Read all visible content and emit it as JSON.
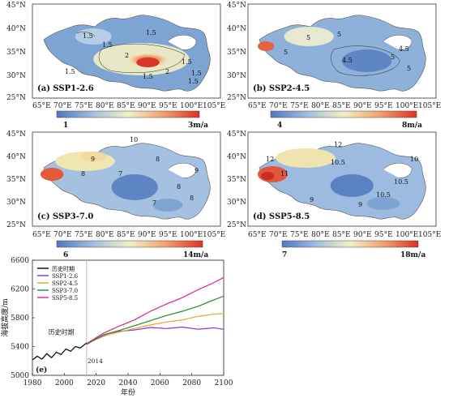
{
  "panels": [
    {
      "id": "a",
      "label": "(a) SSP1-2.6",
      "cb_min": "1",
      "cb_max": "3m/a",
      "contours": [
        "1.5",
        "1.5",
        "1.5",
        "2",
        "1.5",
        "1.5",
        "1.5",
        "1.5",
        "2",
        "1.5"
      ]
    },
    {
      "id": "b",
      "label": "(b) SSP2-4.5",
      "cb_min": "4",
      "cb_max": "8m/a",
      "contours": [
        "5",
        "4.5",
        "5",
        "5",
        "5",
        "4.5",
        "5"
      ]
    },
    {
      "id": "c",
      "label": "(c) SSP3-7.0",
      "cb_min": "6",
      "cb_max": "14m/a",
      "contours": [
        "10",
        "9",
        "8",
        "8",
        "7",
        "7",
        "8",
        "9",
        "8"
      ]
    },
    {
      "id": "d",
      "label": "(d) SSP5-8.5",
      "cb_min": "7",
      "cb_max": "18m/a",
      "contours": [
        "12",
        "11",
        "12",
        "10.5",
        "10.5",
        "9",
        "9",
        "10.5",
        "10"
      ]
    }
  ],
  "lat_ticks": [
    "45°N",
    "40°N",
    "35°N",
    "30°N",
    "25°N"
  ],
  "lon_ticks": [
    "65°E",
    "70°E",
    "75°E",
    "80°E",
    "85°E",
    "90°E",
    "95°E",
    "100°E",
    "105°E"
  ],
  "colors": {
    "low": "#5b83c4",
    "mid": "#f6eec0",
    "high": "#e03b2b"
  },
  "chart_data": {
    "type": "line",
    "label": "(e)",
    "xlabel": "年份",
    "ylabel": "海拔高度/m",
    "xlim": [
      1980,
      2100
    ],
    "ylim": [
      5000,
      6600
    ],
    "xticks": [
      1980,
      2000,
      2020,
      2040,
      2060,
      2080,
      2100
    ],
    "yticks": [
      5000,
      5400,
      5800,
      6200,
      6600
    ],
    "annotation": "历史时期",
    "vline": {
      "x": 2014,
      "label": "2014"
    },
    "series": [
      {
        "name": "历史时期",
        "color": "#000000",
        "x": [
          1980,
          1983,
          1986,
          1989,
          1992,
          1995,
          1998,
          2001,
          2004,
          2007,
          2010,
          2014
        ],
        "y": [
          5215,
          5265,
          5225,
          5300,
          5245,
          5320,
          5290,
          5365,
          5335,
          5400,
          5380,
          5450
        ]
      },
      {
        "name": "SSP1-2.6",
        "color": "#8a2be2",
        "x": [
          2014,
          2024,
          2034,
          2044,
          2054,
          2064,
          2074,
          2084,
          2094,
          2100
        ],
        "y": [
          5440,
          5540,
          5610,
          5630,
          5665,
          5650,
          5670,
          5640,
          5660,
          5640
        ]
      },
      {
        "name": "SSP2-4.5",
        "color": "#f0a020",
        "x": [
          2014,
          2024,
          2034,
          2044,
          2054,
          2064,
          2074,
          2084,
          2094,
          2100
        ],
        "y": [
          5430,
          5550,
          5600,
          5650,
          5700,
          5740,
          5770,
          5820,
          5850,
          5860
        ]
      },
      {
        "name": "SSP3-7.0",
        "color": "#1e8f1e",
        "x": [
          2014,
          2024,
          2034,
          2044,
          2054,
          2064,
          2074,
          2084,
          2094,
          2100
        ],
        "y": [
          5430,
          5560,
          5620,
          5690,
          5760,
          5830,
          5890,
          5960,
          6050,
          6100
        ]
      },
      {
        "name": "SSP5-8.5",
        "color": "#e0208f",
        "x": [
          2014,
          2024,
          2034,
          2044,
          2054,
          2064,
          2074,
          2084,
          2094,
          2100
        ],
        "y": [
          5440,
          5580,
          5680,
          5770,
          5890,
          5990,
          6080,
          6190,
          6290,
          6360
        ]
      }
    ]
  }
}
